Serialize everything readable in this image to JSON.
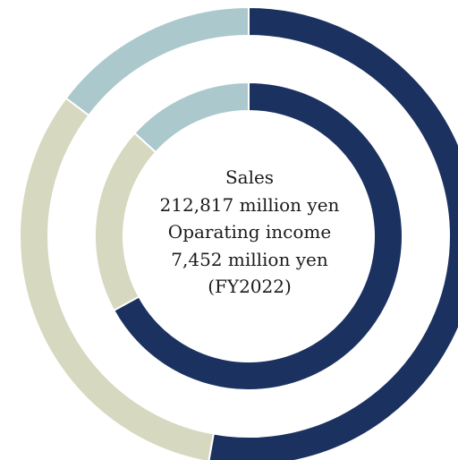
{
  "chart_data": {
    "type": "donut",
    "rings": [
      {
        "ring": "outer",
        "values": [
          52.8,
          32.5,
          14.7
        ],
        "colors": [
          "#1b3160",
          "#d6d8bf",
          "#abc8cc"
        ]
      },
      {
        "ring": "inner",
        "values": [
          67.0,
          19.7,
          13.3
        ],
        "colors": [
          "#1b3160",
          "#d6d8bf",
          "#abc8cc"
        ]
      }
    ],
    "center_text": [
      "Sales",
      "212,817 million yen",
      "Oparating income",
      "7,452 million yen",
      "(FY2022)"
    ]
  }
}
